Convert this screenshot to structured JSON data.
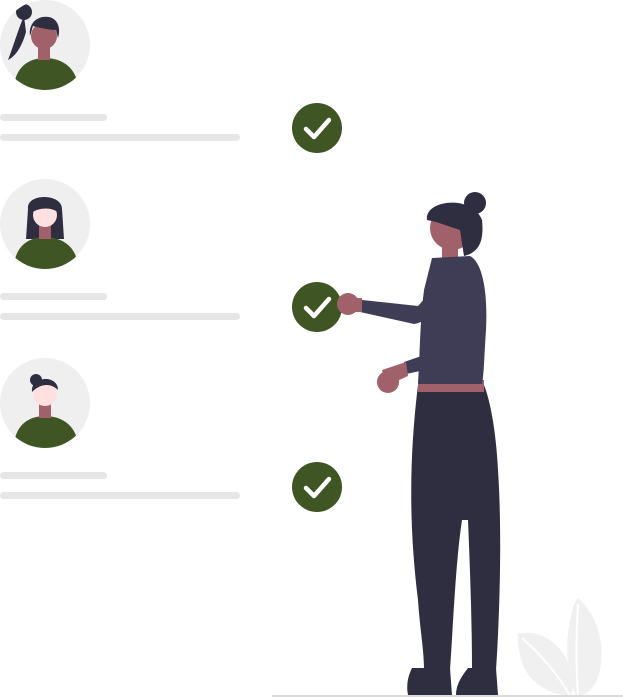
{
  "colors": {
    "accent": "#3f5523",
    "skin": "#a0616a",
    "dark": "#2f2e41",
    "sweater": "#3f3d56",
    "placeholder": "#e6e6e6",
    "avatar_bg": "#efefef"
  },
  "items": [
    {
      "avatar": "female-ponytail",
      "status": "checked"
    },
    {
      "avatar": "female-long-hair",
      "status": "checked"
    },
    {
      "avatar": "male-short-hair",
      "status": "checked"
    }
  ]
}
